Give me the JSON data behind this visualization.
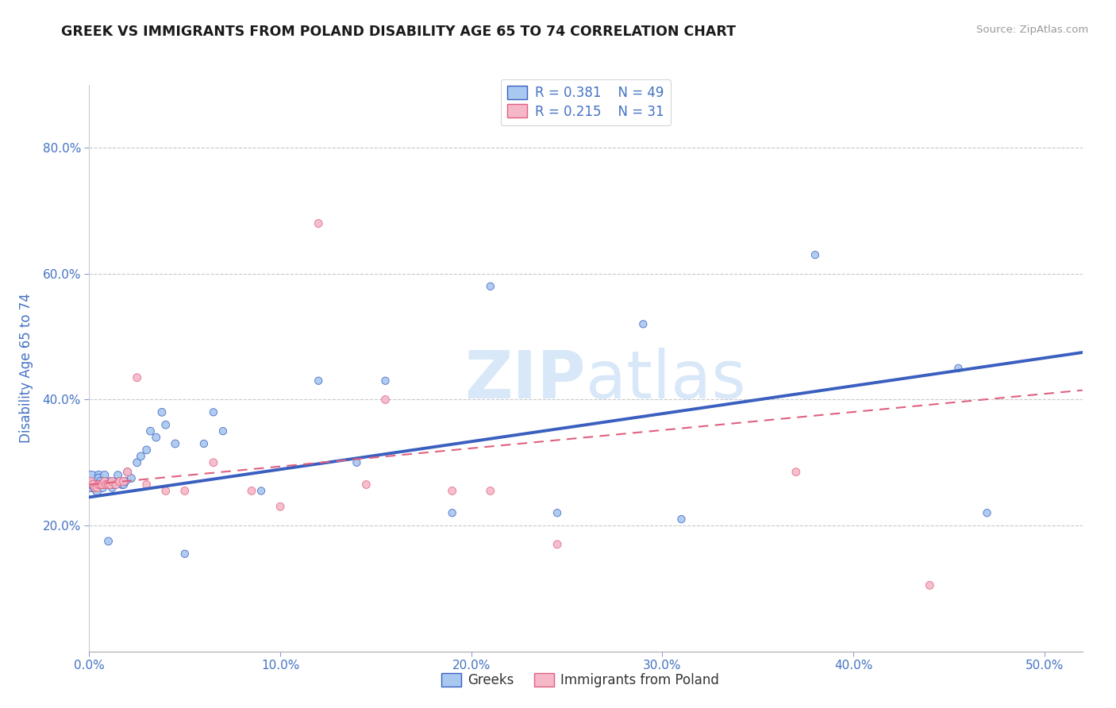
{
  "title": "GREEK VS IMMIGRANTS FROM POLAND DISABILITY AGE 65 TO 74 CORRELATION CHART",
  "source": "Source: ZipAtlas.com",
  "ylabel": "Disability Age 65 to 74",
  "xlim": [
    0.0,
    0.52
  ],
  "ylim": [
    0.0,
    0.9
  ],
  "x_ticks": [
    0.0,
    0.1,
    0.2,
    0.3,
    0.4,
    0.5
  ],
  "x_tick_labels": [
    "0.0%",
    "",
    "",
    "",
    "",
    "50.0%"
  ],
  "y_ticks": [
    0.2,
    0.4,
    0.6,
    0.8
  ],
  "y_tick_labels": [
    "20.0%",
    "40.0%",
    "60.0%",
    "80.0%"
  ],
  "legend_label1": "Greeks",
  "legend_label2": "Immigrants from Poland",
  "R1": 0.381,
  "N1": 49,
  "R2": 0.215,
  "N2": 31,
  "color_blue": "#A8C8F0",
  "color_pink": "#F5B8C8",
  "color_blue_line": "#3A5FBF",
  "color_pink_line": "#E06080",
  "color_label": "#4472C4",
  "watermark_color": "#D8E8F8",
  "greeks_x": [
    0.001,
    0.002,
    0.003,
    0.004,
    0.005,
    0.005,
    0.006,
    0.007,
    0.007,
    0.008,
    0.008,
    0.009,
    0.01,
    0.01,
    0.011,
    0.012,
    0.013,
    0.014,
    0.015,
    0.016,
    0.017,
    0.018,
    0.019,
    0.02,
    0.022,
    0.025,
    0.027,
    0.03,
    0.032,
    0.035,
    0.038,
    0.04,
    0.045,
    0.05,
    0.06,
    0.065,
    0.07,
    0.09,
    0.12,
    0.14,
    0.155,
    0.19,
    0.21,
    0.245,
    0.29,
    0.31,
    0.38,
    0.455,
    0.47
  ],
  "greeks_y": [
    0.27,
    0.265,
    0.26,
    0.255,
    0.28,
    0.275,
    0.27,
    0.265,
    0.26,
    0.28,
    0.27,
    0.265,
    0.175,
    0.265,
    0.27,
    0.26,
    0.265,
    0.27,
    0.28,
    0.27,
    0.265,
    0.265,
    0.27,
    0.285,
    0.275,
    0.3,
    0.31,
    0.32,
    0.35,
    0.34,
    0.38,
    0.36,
    0.33,
    0.155,
    0.33,
    0.38,
    0.35,
    0.255,
    0.43,
    0.3,
    0.43,
    0.22,
    0.58,
    0.22,
    0.52,
    0.21,
    0.63,
    0.45,
    0.22
  ],
  "greeks_size": [
    350,
    80,
    70,
    65,
    60,
    60,
    60,
    60,
    55,
    55,
    55,
    55,
    50,
    50,
    50,
    50,
    50,
    50,
    50,
    50,
    50,
    50,
    50,
    50,
    50,
    50,
    50,
    50,
    50,
    50,
    50,
    50,
    50,
    45,
    45,
    45,
    45,
    45,
    45,
    45,
    45,
    45,
    45,
    45,
    45,
    45,
    45,
    45,
    45
  ],
  "poland_x": [
    0.001,
    0.002,
    0.003,
    0.004,
    0.005,
    0.006,
    0.007,
    0.008,
    0.009,
    0.01,
    0.011,
    0.012,
    0.014,
    0.016,
    0.018,
    0.02,
    0.025,
    0.03,
    0.04,
    0.05,
    0.065,
    0.085,
    0.1,
    0.12,
    0.145,
    0.155,
    0.19,
    0.21,
    0.245,
    0.37,
    0.44
  ],
  "poland_y": [
    0.27,
    0.265,
    0.26,
    0.26,
    0.265,
    0.265,
    0.265,
    0.27,
    0.265,
    0.265,
    0.265,
    0.27,
    0.265,
    0.27,
    0.27,
    0.285,
    0.435,
    0.265,
    0.255,
    0.255,
    0.3,
    0.255,
    0.23,
    0.68,
    0.265,
    0.4,
    0.255,
    0.255,
    0.17,
    0.285,
    0.105
  ],
  "poland_size": [
    55,
    55,
    55,
    55,
    55,
    55,
    55,
    55,
    55,
    55,
    55,
    55,
    55,
    55,
    55,
    55,
    50,
    50,
    50,
    50,
    50,
    50,
    50,
    50,
    50,
    50,
    50,
    50,
    50,
    50,
    50
  ],
  "blue_line_x": [
    0.0,
    0.52
  ],
  "blue_line_y": [
    0.245,
    0.475
  ],
  "pink_line_x": [
    0.0,
    0.52
  ],
  "pink_line_y": [
    0.265,
    0.415
  ]
}
